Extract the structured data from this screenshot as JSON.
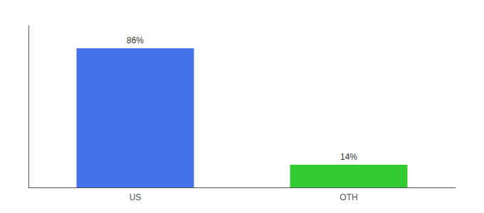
{
  "chart_data": {
    "type": "bar",
    "categories": [
      "US",
      "OTH"
    ],
    "values": [
      86,
      14
    ],
    "colors": [
      "#4472e8",
      "#33cc33"
    ],
    "data_labels": true,
    "value_labels": [
      "86%",
      "14%"
    ],
    "ylim": [
      0,
      100
    ],
    "grid": false,
    "tick_labels": "x"
  }
}
